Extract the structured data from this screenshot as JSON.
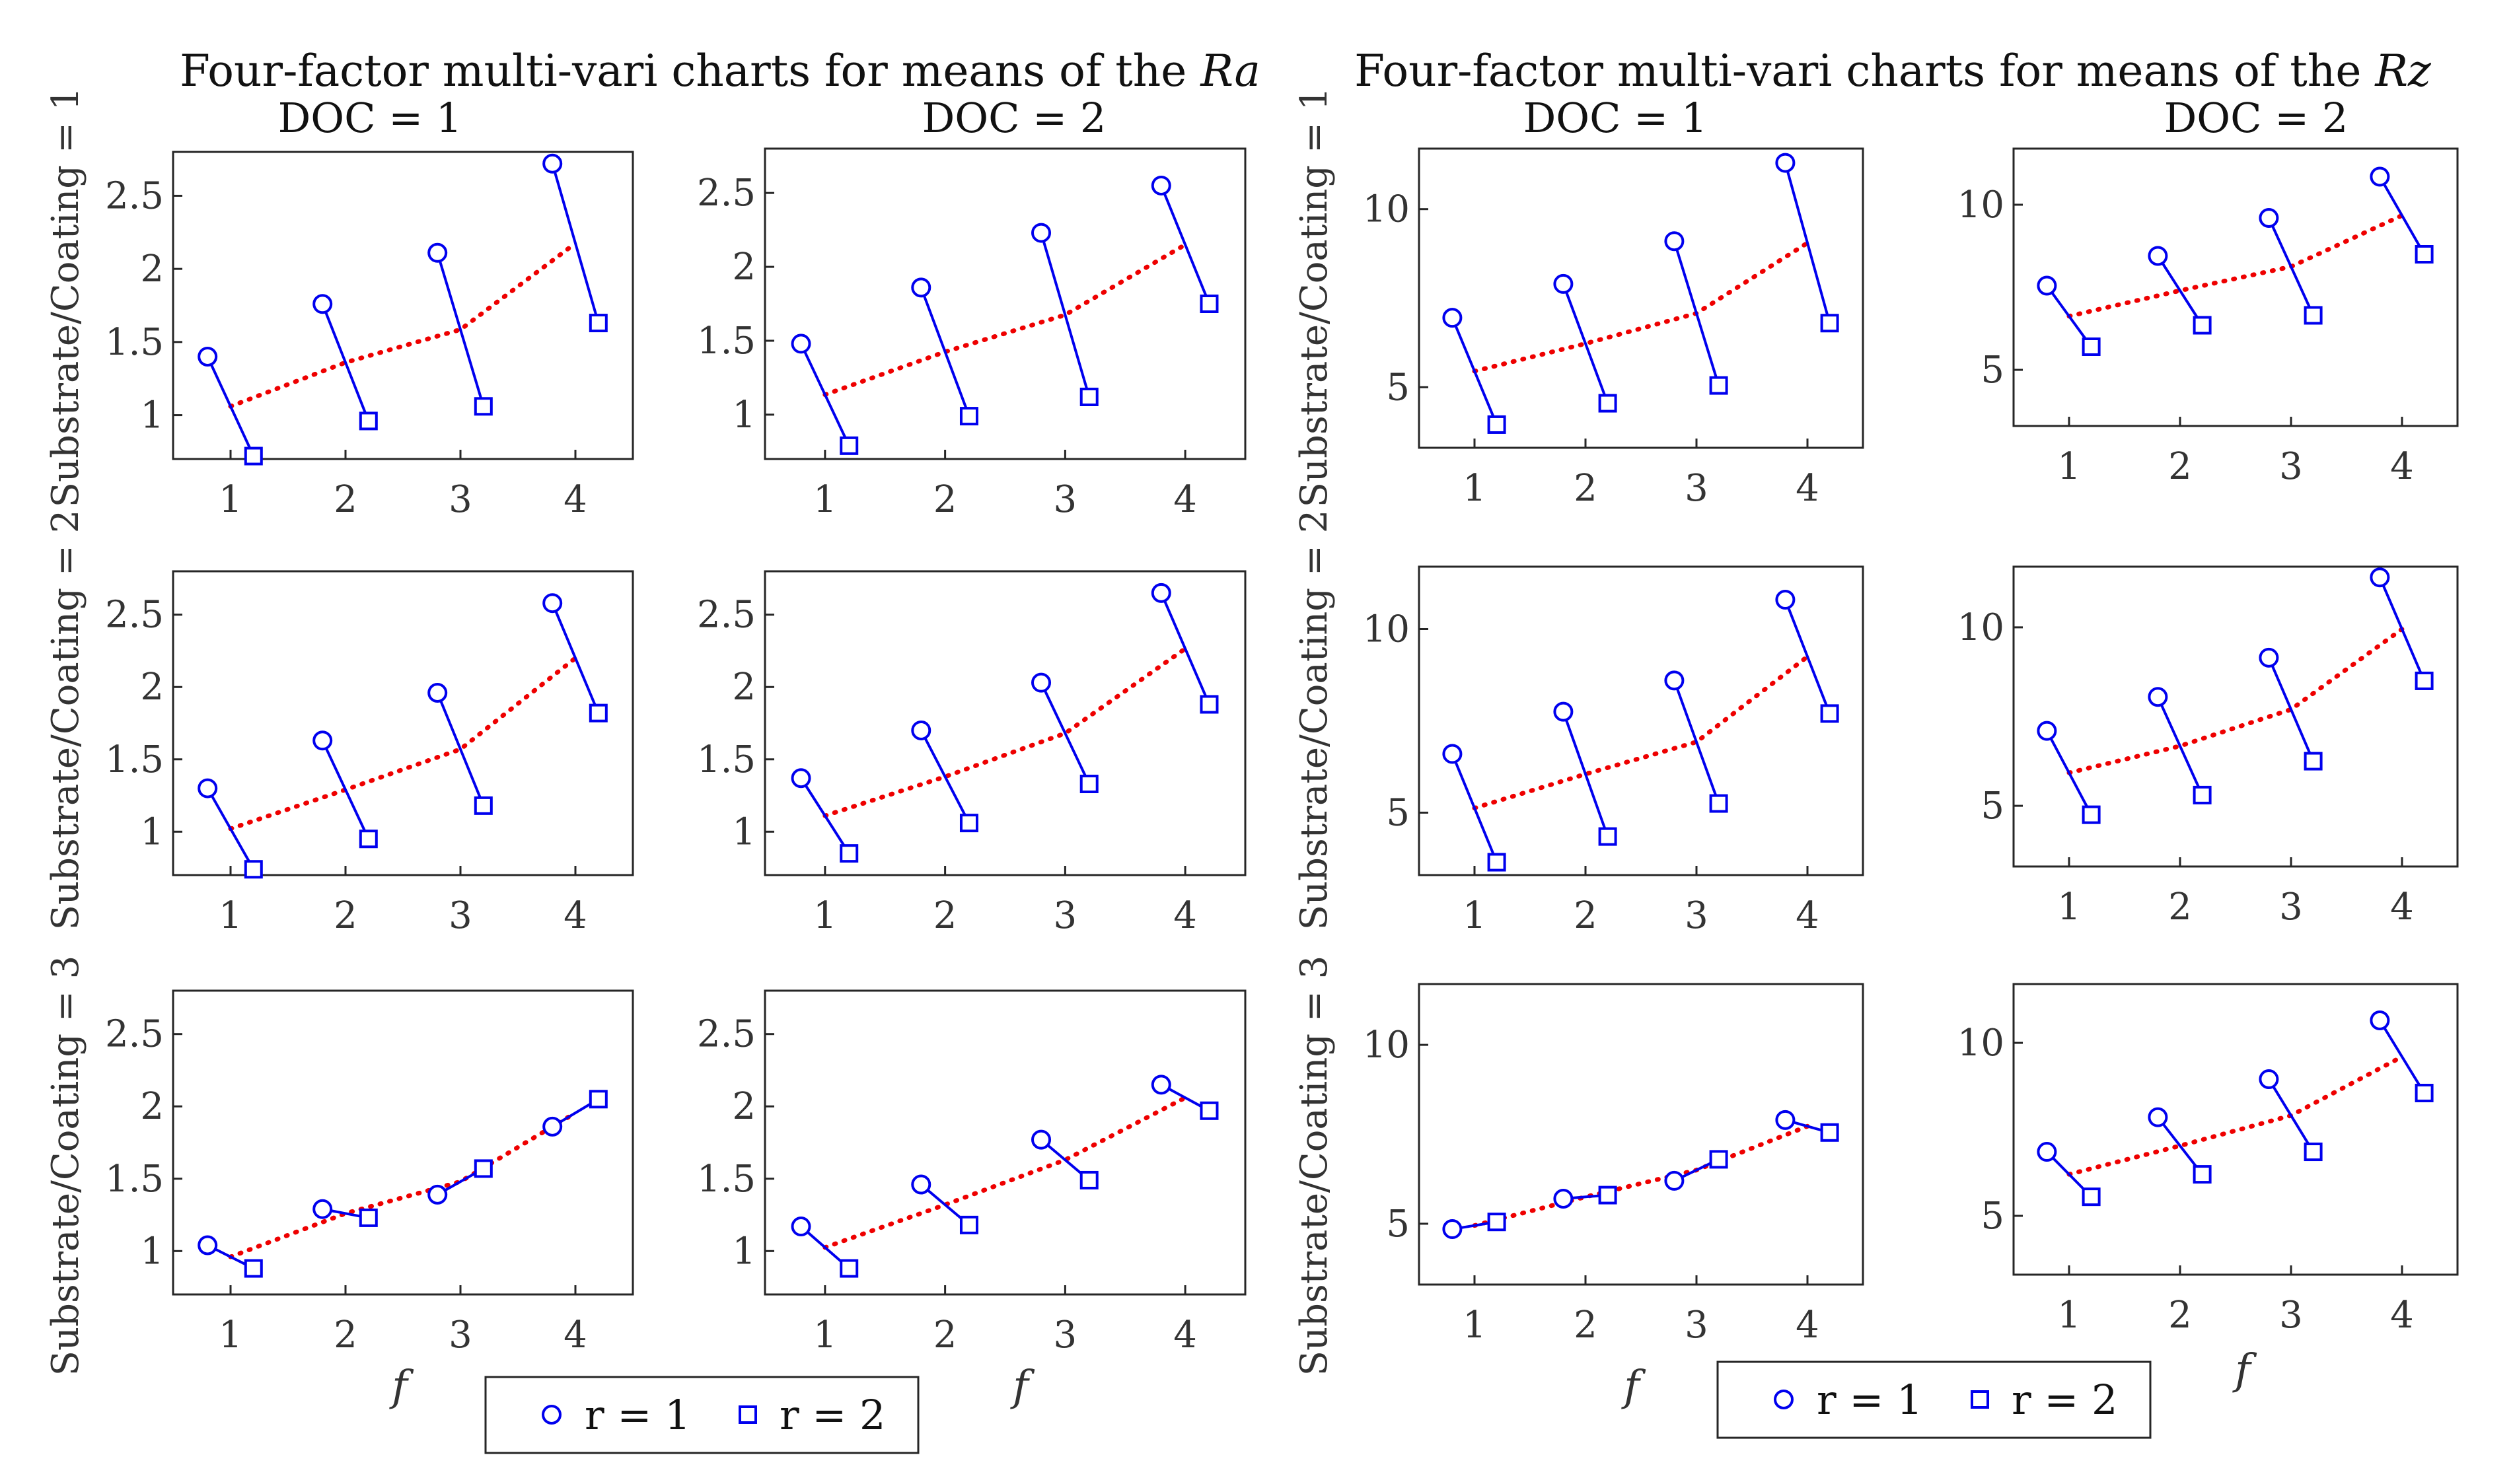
{
  "colors": {
    "series": "#0000ee",
    "trend": "#ee0000",
    "axis": "#262626",
    "text": "#333333"
  },
  "figure": {
    "groups": [
      {
        "title_prefix": "Four-factor multi-vari charts for means of the ",
        "title_var": "Ra",
        "col_titles": [
          "DOC = 1",
          "DOC = 2"
        ],
        "row_labels": [
          "Substrate/Coating = 1",
          "Substrate/Coating = 2",
          "Substrate/Coating = 3"
        ],
        "xlabel": "f",
        "legend": {
          "r1_label": "r = 1",
          "r2_label": "r = 2",
          "r1_marker": "circle",
          "r2_marker": "square"
        }
      },
      {
        "title_prefix": "Four-factor multi-vari charts for means of the ",
        "title_var": "Rz",
        "col_titles": [
          "DOC = 1",
          "DOC = 2"
        ],
        "row_labels": [
          "Substrate/Coating = 1",
          "Substrate/Coating = 2",
          "Substrate/Coating = 3"
        ],
        "xlabel": "f",
        "legend": {
          "r1_label": "r = 1",
          "r2_label": "r = 2",
          "r1_marker": "circle",
          "r2_marker": "square"
        }
      }
    ]
  },
  "chart_data": [
    {
      "type": "line",
      "group": "Ra",
      "substrate_coating": 1,
      "doc": 1,
      "x": [
        1,
        2,
        3,
        4
      ],
      "xlim": [
        0.5,
        4.5
      ],
      "ylim": [
        0.7,
        2.8
      ],
      "yticks": [
        1,
        1.5,
        2,
        2.5
      ],
      "xticks": [
        1,
        2,
        3,
        4
      ],
      "series": [
        {
          "name": "r = 1",
          "marker": "circle",
          "values": [
            1.4,
            1.76,
            2.11,
            2.72
          ]
        },
        {
          "name": "r = 2",
          "marker": "square",
          "values": [
            0.72,
            0.96,
            1.06,
            1.63
          ]
        },
        {
          "name": "mean",
          "style": "dotted",
          "values": [
            1.06,
            1.36,
            1.585,
            2.175
          ]
        }
      ]
    },
    {
      "type": "line",
      "group": "Ra",
      "substrate_coating": 1,
      "doc": 2,
      "x": [
        1,
        2,
        3,
        4
      ],
      "xlim": [
        0.5,
        4.5
      ],
      "ylim": [
        0.7,
        2.8
      ],
      "yticks": [
        1,
        1.5,
        2,
        2.5
      ],
      "xticks": [
        1,
        2,
        3,
        4
      ],
      "series": [
        {
          "name": "r = 1",
          "marker": "circle",
          "values": [
            1.48,
            1.86,
            2.23,
            2.55
          ]
        },
        {
          "name": "r = 2",
          "marker": "square",
          "values": [
            0.79,
            0.99,
            1.12,
            1.75
          ]
        },
        {
          "name": "mean",
          "style": "dotted",
          "values": [
            1.135,
            1.425,
            1.675,
            2.15
          ]
        }
      ]
    },
    {
      "type": "line",
      "group": "Ra",
      "substrate_coating": 2,
      "doc": 1,
      "x": [
        1,
        2,
        3,
        4
      ],
      "xlim": [
        0.5,
        4.5
      ],
      "ylim": [
        0.7,
        2.8
      ],
      "yticks": [
        1,
        1.5,
        2,
        2.5
      ],
      "xticks": [
        1,
        2,
        3,
        4
      ],
      "series": [
        {
          "name": "r = 1",
          "marker": "circle",
          "values": [
            1.3,
            1.63,
            1.96,
            2.58
          ]
        },
        {
          "name": "r = 2",
          "marker": "square",
          "values": [
            0.74,
            0.95,
            1.18,
            1.82
          ]
        },
        {
          "name": "mean",
          "style": "dotted",
          "values": [
            1.02,
            1.29,
            1.57,
            2.2
          ]
        }
      ]
    },
    {
      "type": "line",
      "group": "Ra",
      "substrate_coating": 2,
      "doc": 2,
      "x": [
        1,
        2,
        3,
        4
      ],
      "xlim": [
        0.5,
        4.5
      ],
      "ylim": [
        0.7,
        2.8
      ],
      "yticks": [
        1,
        1.5,
        2,
        2.5
      ],
      "xticks": [
        1,
        2,
        3,
        4
      ],
      "series": [
        {
          "name": "r = 1",
          "marker": "circle",
          "values": [
            1.37,
            1.7,
            2.03,
            2.65
          ]
        },
        {
          "name": "r = 2",
          "marker": "square",
          "values": [
            0.85,
            1.06,
            1.33,
            1.88
          ]
        },
        {
          "name": "mean",
          "style": "dotted",
          "values": [
            1.11,
            1.38,
            1.68,
            2.265
          ]
        }
      ]
    },
    {
      "type": "line",
      "group": "Ra",
      "substrate_coating": 3,
      "doc": 1,
      "x": [
        1,
        2,
        3,
        4
      ],
      "xlim": [
        0.5,
        4.5
      ],
      "ylim": [
        0.7,
        2.8
      ],
      "yticks": [
        1,
        1.5,
        2,
        2.5
      ],
      "xticks": [
        1,
        2,
        3,
        4
      ],
      "series": [
        {
          "name": "r = 1",
          "marker": "circle",
          "values": [
            1.04,
            1.29,
            1.39,
            1.86
          ]
        },
        {
          "name": "r = 2",
          "marker": "square",
          "values": [
            0.88,
            1.23,
            1.57,
            2.05
          ]
        },
        {
          "name": "mean",
          "style": "dotted",
          "values": [
            0.96,
            1.26,
            1.48,
            1.955
          ]
        }
      ]
    },
    {
      "type": "line",
      "group": "Ra",
      "substrate_coating": 3,
      "doc": 2,
      "x": [
        1,
        2,
        3,
        4
      ],
      "xlim": [
        0.5,
        4.5
      ],
      "ylim": [
        0.7,
        2.8
      ],
      "yticks": [
        1,
        1.5,
        2,
        2.5
      ],
      "xticks": [
        1,
        2,
        3,
        4
      ],
      "series": [
        {
          "name": "r = 1",
          "marker": "circle",
          "values": [
            1.17,
            1.46,
            1.77,
            2.15
          ]
        },
        {
          "name": "r = 2",
          "marker": "square",
          "values": [
            0.88,
            1.18,
            1.49,
            1.97
          ]
        },
        {
          "name": "mean",
          "style": "dotted",
          "values": [
            1.025,
            1.32,
            1.63,
            2.06
          ]
        }
      ]
    },
    {
      "type": "line",
      "group": "Rz",
      "substrate_coating": 1,
      "doc": 1,
      "x": [
        1,
        2,
        3,
        4
      ],
      "xlim": [
        0.5,
        4.5
      ],
      "ylim": [
        3.3,
        11.7
      ],
      "yticks": [
        5,
        10
      ],
      "xticks": [
        1,
        2,
        3,
        4
      ],
      "series": [
        {
          "name": "r = 1",
          "marker": "circle",
          "values": [
            6.95,
            7.9,
            9.1,
            11.3
          ]
        },
        {
          "name": "r = 2",
          "marker": "square",
          "values": [
            3.95,
            4.55,
            5.05,
            6.8
          ]
        },
        {
          "name": "mean",
          "style": "dotted",
          "values": [
            5.45,
            6.225,
            7.075,
            9.05
          ]
        }
      ]
    },
    {
      "type": "line",
      "group": "Rz",
      "substrate_coating": 1,
      "doc": 2,
      "x": [
        1,
        2,
        3,
        4
      ],
      "xlim": [
        0.5,
        4.5
      ],
      "ylim": [
        3.3,
        11.7
      ],
      "yticks": [
        5,
        10
      ],
      "xticks": [
        1,
        2,
        3,
        4
      ],
      "series": [
        {
          "name": "r = 1",
          "marker": "circle",
          "values": [
            7.55,
            8.45,
            9.6,
            10.85
          ]
        },
        {
          "name": "r = 2",
          "marker": "square",
          "values": [
            5.7,
            6.35,
            6.65,
            8.5
          ]
        },
        {
          "name": "mean",
          "style": "dotted",
          "values": [
            6.625,
            7.4,
            8.125,
            9.675
          ]
        }
      ]
    },
    {
      "type": "line",
      "group": "Rz",
      "substrate_coating": 2,
      "doc": 1,
      "x": [
        1,
        2,
        3,
        4
      ],
      "xlim": [
        0.5,
        4.5
      ],
      "ylim": [
        3.3,
        11.7
      ],
      "yticks": [
        5,
        10
      ],
      "xticks": [
        1,
        2,
        3,
        4
      ],
      "series": [
        {
          "name": "r = 1",
          "marker": "circle",
          "values": [
            6.6,
            7.75,
            8.6,
            10.8
          ]
        },
        {
          "name": "r = 2",
          "marker": "square",
          "values": [
            3.65,
            4.35,
            5.25,
            7.7
          ]
        },
        {
          "name": "mean",
          "style": "dotted",
          "values": [
            5.125,
            6.05,
            6.925,
            9.25
          ]
        }
      ]
    },
    {
      "type": "line",
      "group": "Rz",
      "substrate_coating": 2,
      "doc": 2,
      "x": [
        1,
        2,
        3,
        4
      ],
      "xlim": [
        0.5,
        4.5
      ],
      "ylim": [
        3.3,
        11.7
      ],
      "yticks": [
        5,
        10
      ],
      "xticks": [
        1,
        2,
        3,
        4
      ],
      "series": [
        {
          "name": "r = 1",
          "marker": "circle",
          "values": [
            7.1,
            8.05,
            9.15,
            11.4
          ]
        },
        {
          "name": "r = 2",
          "marker": "square",
          "values": [
            4.75,
            5.3,
            6.25,
            8.5
          ]
        },
        {
          "name": "mean",
          "style": "dotted",
          "values": [
            5.925,
            6.675,
            7.7,
            9.95
          ]
        }
      ]
    },
    {
      "type": "line",
      "group": "Rz",
      "substrate_coating": 3,
      "doc": 1,
      "x": [
        1,
        2,
        3,
        4
      ],
      "xlim": [
        0.5,
        4.5
      ],
      "ylim": [
        3.3,
        11.7
      ],
      "yticks": [
        5,
        10
      ],
      "xticks": [
        1,
        2,
        3,
        4
      ],
      "series": [
        {
          "name": "r = 1",
          "marker": "circle",
          "values": [
            4.85,
            5.7,
            6.2,
            7.9
          ]
        },
        {
          "name": "r = 2",
          "marker": "square",
          "values": [
            5.05,
            5.8,
            6.8,
            7.55
          ]
        },
        {
          "name": "mean",
          "style": "dotted",
          "values": [
            4.95,
            5.75,
            6.5,
            7.725
          ]
        }
      ]
    },
    {
      "type": "line",
      "group": "Rz",
      "substrate_coating": 3,
      "doc": 2,
      "x": [
        1,
        2,
        3,
        4
      ],
      "xlim": [
        0.5,
        4.5
      ],
      "ylim": [
        3.3,
        11.7
      ],
      "yticks": [
        5,
        10
      ],
      "xticks": [
        1,
        2,
        3,
        4
      ],
      "series": [
        {
          "name": "r = 1",
          "marker": "circle",
          "values": [
            6.85,
            7.85,
            8.95,
            10.65
          ]
        },
        {
          "name": "r = 2",
          "marker": "square",
          "values": [
            5.55,
            6.2,
            6.85,
            8.55
          ]
        },
        {
          "name": "mean",
          "style": "dotted",
          "values": [
            6.2,
            7.025,
            7.9,
            9.6
          ]
        }
      ]
    }
  ]
}
